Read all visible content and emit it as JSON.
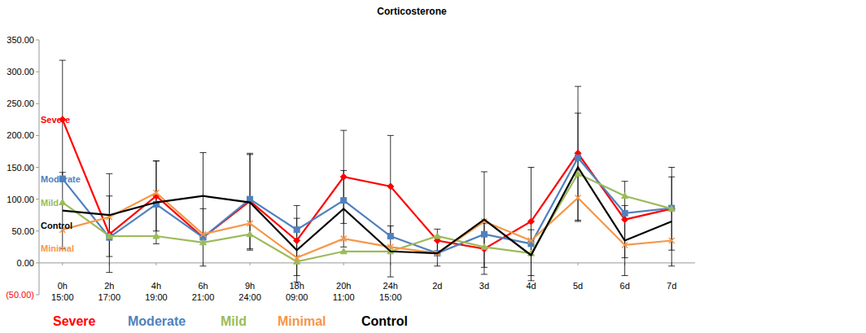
{
  "chart_data": {
    "type": "line",
    "title": "Corticosterone",
    "categories": [
      "0h\n15:00",
      "2h\n17:00",
      "4h\n19:00",
      "6h\n21:00",
      "9h\n24:00",
      "18h\n09:00",
      "20h\n11:00",
      "24h\n15:00",
      "2d",
      "3d",
      "4d",
      "5d",
      "6d",
      "7d"
    ],
    "series": [
      {
        "name": "Severe",
        "color": "#ff0000",
        "marker": "diamond",
        "values": [
          225,
          45,
          105,
          40,
          97,
          35,
          135,
          120,
          35,
          22,
          65,
          172,
          68,
          85
        ],
        "errors": [
          93,
          60,
          55,
          45,
          75,
          55,
          73,
          80,
          18,
          40,
          85,
          105,
          60,
          65
        ]
      },
      {
        "name": "Moderate",
        "color": "#4f81bd",
        "marker": "square",
        "values": [
          132,
          40,
          92,
          40,
          100,
          52,
          98,
          42,
          15,
          45,
          30,
          165,
          78,
          86
        ]
      },
      {
        "name": "Mild",
        "color": "#9bbb59",
        "marker": "triangle",
        "values": [
          95,
          42,
          42,
          32,
          45,
          2,
          18,
          18,
          42,
          25,
          15,
          140,
          105,
          85
        ]
      },
      {
        "name": "Minimal",
        "color": "#f79646",
        "marker": "x",
        "values": [
          52,
          72,
          110,
          45,
          62,
          8,
          38,
          25,
          15,
          65,
          35,
          102,
          28,
          35
        ]
      },
      {
        "name": "Control",
        "color": "#000000",
        "marker": "none",
        "values": [
          82,
          75,
          95,
          105,
          95,
          20,
          85,
          18,
          15,
          68,
          12,
          150,
          35,
          65
        ],
        "errors": [
          60,
          65,
          65,
          68,
          75,
          50,
          60,
          40,
          20,
          75,
          40,
          85,
          55,
          70
        ]
      }
    ],
    "ylim": [
      -50,
      350
    ],
    "yticks": [
      {
        "value": -50,
        "label": "(50.00)"
      },
      {
        "value": 0,
        "label": "0.00"
      },
      {
        "value": 50,
        "label": "50.00"
      },
      {
        "value": 100,
        "label": "100.00"
      },
      {
        "value": 150,
        "label": "150.00"
      },
      {
        "value": 200,
        "label": "200.00"
      },
      {
        "value": 250,
        "label": "250.00"
      },
      {
        "value": 300,
        "label": "300.00"
      },
      {
        "value": 350,
        "label": "350.00"
      }
    ],
    "grid": false,
    "legend": "bottom"
  }
}
